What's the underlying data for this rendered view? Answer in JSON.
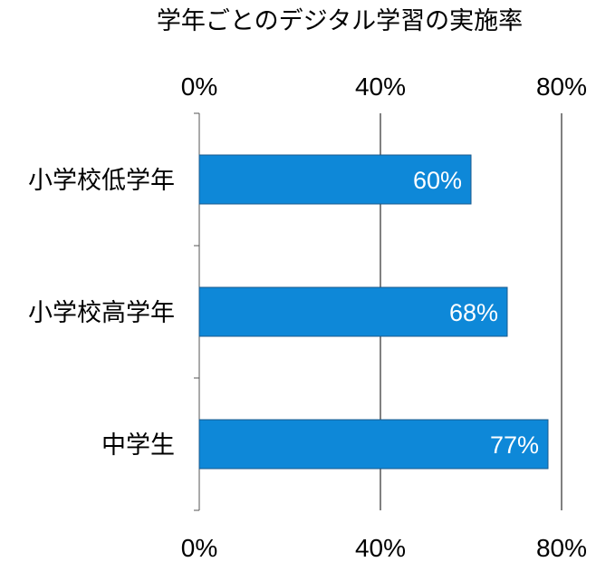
{
  "chart_data": {
    "type": "bar",
    "orientation": "horizontal",
    "title": "学年ごとのデジタル学習の実施率",
    "categories": [
      "小学校低学年",
      "小学校高学年",
      "中学生"
    ],
    "values": [
      60,
      68,
      77
    ],
    "data_labels": [
      "60%",
      "68%",
      "77%"
    ],
    "xlim": [
      0,
      80
    ],
    "x_ticks": [
      0,
      40,
      80
    ],
    "x_tick_labels": [
      "0%",
      "40%",
      "80%"
    ],
    "x_axis_labels_position": "top-and-bottom",
    "grid": true,
    "legend": "none",
    "bar_color": "#0E88D8",
    "bar_edge_color": "#1A5A8C",
    "data_label_color": "#FFFFFF"
  }
}
